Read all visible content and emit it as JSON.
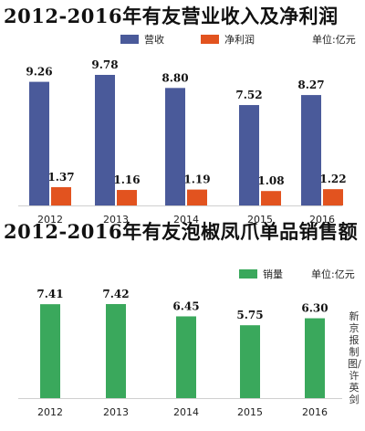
{
  "chart_data": [
    {
      "type": "bar",
      "title": "2012-2016年有友营业收入及净利润",
      "categories": [
        "2012",
        "2013",
        "2014",
        "2015",
        "2016"
      ],
      "series": [
        {
          "name": "营收",
          "color": "#4a5a9a",
          "values": [
            9.26,
            9.78,
            8.8,
            7.52,
            8.27
          ]
        },
        {
          "name": "净利润",
          "color": "#e2531f",
          "values": [
            1.37,
            1.16,
            1.19,
            1.08,
            1.22
          ]
        }
      ],
      "unit": "单位:亿元",
      "value_labels": true,
      "legend_position": "top-right",
      "grid": false
    },
    {
      "type": "bar",
      "title": "2012-2016年有友泡椒凤爪单品销售额",
      "categories": [
        "2012",
        "2013",
        "2014",
        "2015",
        "2016"
      ],
      "series": [
        {
          "name": "销量",
          "color": "#3aa85c",
          "values": [
            7.41,
            7.42,
            6.45,
            5.75,
            6.3
          ]
        }
      ],
      "unit": "单位:亿元",
      "value_labels": true,
      "legend_position": "top-right",
      "grid": false
    }
  ],
  "credit": "新京报制图/许英剑"
}
